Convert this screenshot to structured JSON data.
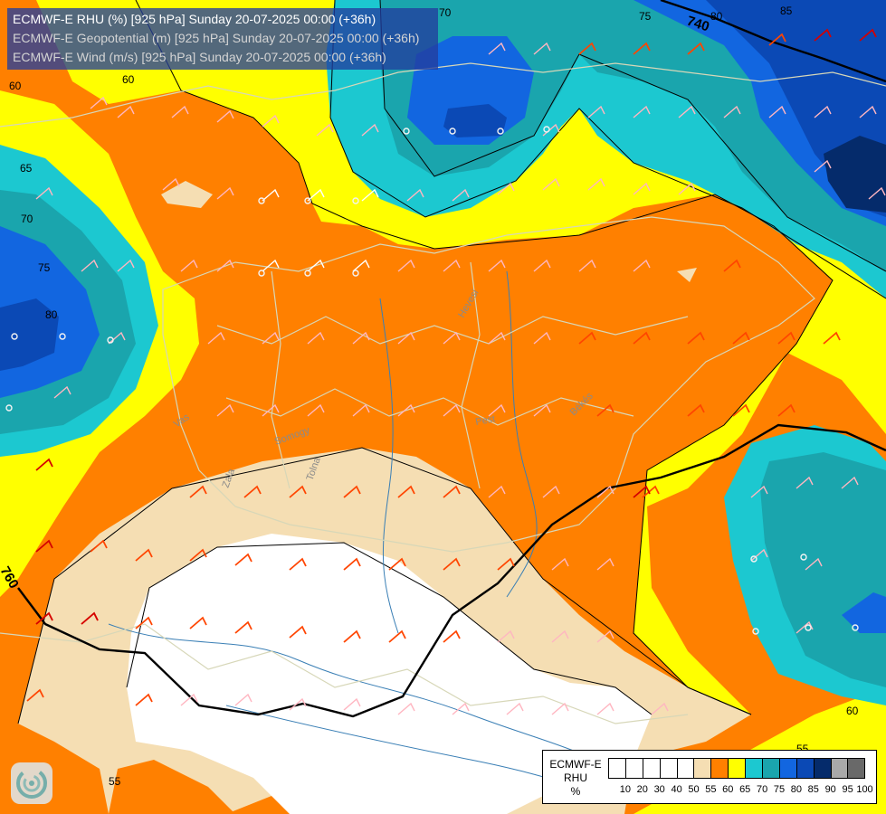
{
  "title_lines": [
    "ECMWF-E RHU (%) [925 hPa] Sunday 20-07-2025 00:00 (+36h)",
    "ECMWF-E Geopotential (m) [925 hPa] Sunday 20-07-2025 00:00 (+36h)",
    "ECMWF-E Wind (m/s) [925 hPa] Sunday 20-07-2025 00:00 (+36h)"
  ],
  "legend": {
    "label_lines": [
      "ECMWF-E",
      "RHU",
      "%"
    ],
    "ticks": [
      "10",
      "20",
      "30",
      "40",
      "50",
      "55",
      "60",
      "65",
      "70",
      "75",
      "80",
      "85",
      "90",
      "95",
      "100"
    ],
    "swatch_colors": [
      "#ffffff",
      "#ffffff",
      "#ffffff",
      "#ffffff",
      "#ffffff",
      "#f5deb3",
      "#ff8000",
      "#ffff00",
      "#1cc8d0",
      "#1aa5ad",
      "#1266e0",
      "#0b49b5",
      "#052b6b",
      "#a9a9a9",
      "#696969"
    ]
  },
  "contour_labels": {
    "rhu": [
      "70",
      "75",
      "80",
      "85",
      "60",
      "65",
      "70",
      "75",
      "80",
      "60",
      "55",
      "55",
      "60"
    ],
    "geopotential": [
      "740",
      "760"
    ]
  },
  "place_labels": [
    "Hevesi",
    "Pest",
    "Békés",
    "Vas",
    "Somogy",
    "Tolna",
    "Zala"
  ],
  "colors": {
    "white": "#ffffff",
    "tan": "#f5deb3",
    "orange": "#ff8000",
    "yellow": "#ffff00",
    "cyan": "#1cc8d0",
    "teal": "#1aa5ad",
    "blue": "#1266e0",
    "dark_blue": "#0b49b5",
    "navy": "#052b6b",
    "border": "#c8c8a8",
    "river": "#3a7fb5"
  },
  "icons": {
    "logo": "ogimet-swirl-logo"
  }
}
